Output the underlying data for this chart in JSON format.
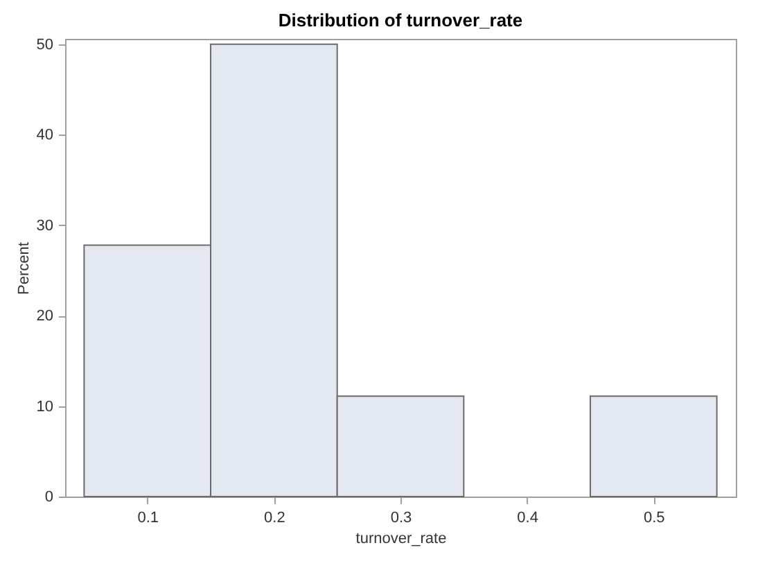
{
  "chart_data": {
    "type": "histogram",
    "title": "Distribution of turnover_rate",
    "xlabel": "turnover_rate",
    "ylabel": "Percent",
    "bins": [
      0.05,
      0.15,
      0.25,
      0.35,
      0.45,
      0.55
    ],
    "values": [
      27.8,
      50,
      11.1,
      0,
      11.1
    ],
    "color": "#e3e8f1",
    "xlim": [
      0.035,
      0.565
    ],
    "xticks": [
      0.1,
      0.2,
      0.3,
      0.4,
      0.5
    ],
    "ylim": [
      0,
      50.6
    ],
    "yticks": [
      0,
      10,
      20,
      30,
      40,
      50
    ],
    "grid": false
  }
}
